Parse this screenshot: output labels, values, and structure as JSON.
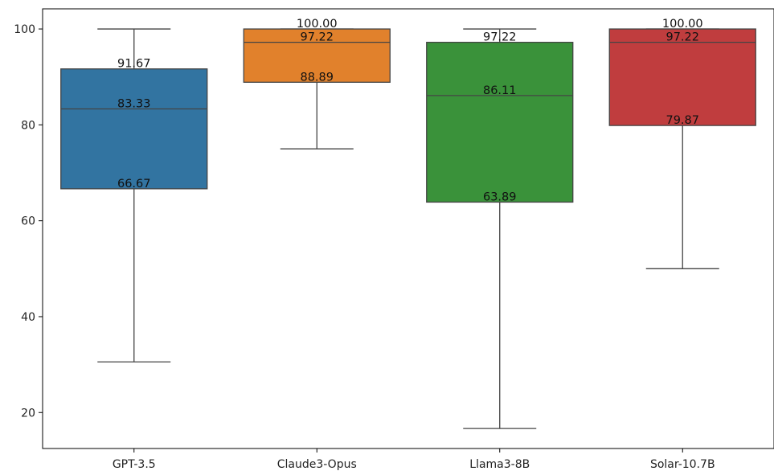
{
  "chart_data": {
    "type": "box",
    "title": "",
    "xlabel": "",
    "ylabel": "",
    "categories": [
      "GPT-3.5",
      "Claude3-Opus",
      "Llama3-8B",
      "Solar-10.7B"
    ],
    "colors": [
      "#3274a1",
      "#e1812c",
      "#3a923a",
      "#c03d3e"
    ],
    "boxes": [
      {
        "name": "GPT-3.5",
        "whisker_low": 30.56,
        "q1": 66.67,
        "median": 83.33,
        "q3": 91.67,
        "whisker_high": 100.0
      },
      {
        "name": "Claude3-Opus",
        "whisker_low": 75.0,
        "q1": 88.89,
        "median": 97.22,
        "q3": 100.0,
        "whisker_high": 100.0
      },
      {
        "name": "Llama3-8B",
        "whisker_low": 16.67,
        "q1": 63.89,
        "median": 86.11,
        "q3": 97.22,
        "whisker_high": 100.0
      },
      {
        "name": "Solar-10.7B",
        "whisker_low": 50.0,
        "q1": 79.87,
        "median": 97.22,
        "q3": 100.0,
        "whisker_high": 100.0
      }
    ],
    "annotations": [
      [
        "91.67",
        "83.33",
        "66.67"
      ],
      [
        "100.00",
        "97.22",
        "88.89"
      ],
      [
        "97.22",
        "86.11",
        "63.89"
      ],
      [
        "100.00",
        "97.22",
        "79.87"
      ]
    ],
    "yticks": [
      20,
      40,
      60,
      80,
      100
    ],
    "ytick_labels": [
      "20",
      "40",
      "60",
      "80",
      "100"
    ],
    "ylim": [
      12.5,
      104.2
    ],
    "grid": false,
    "legend": "none"
  }
}
